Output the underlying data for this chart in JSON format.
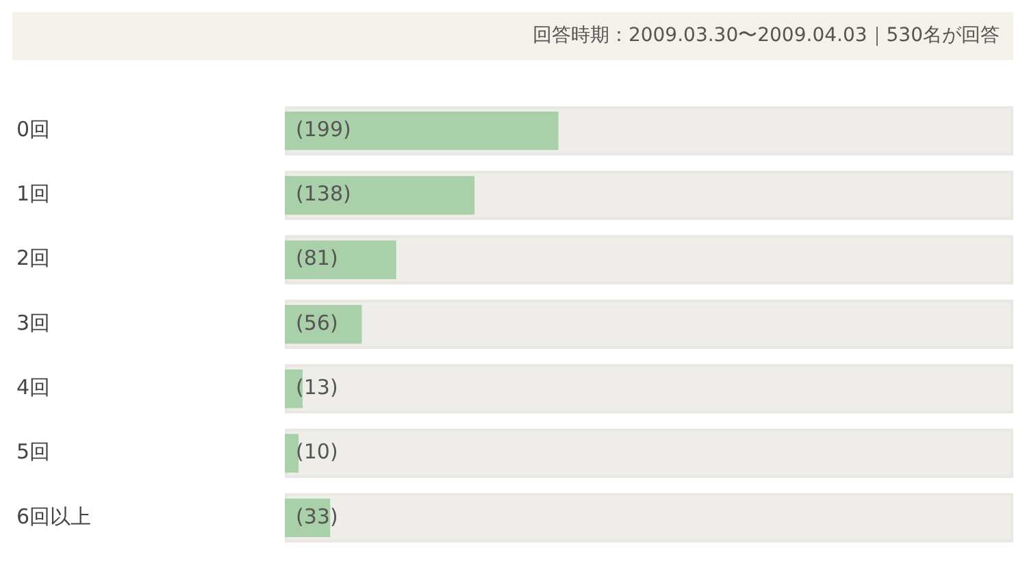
{
  "chart_data": {
    "type": "bar",
    "orientation": "horizontal",
    "title": "回答時期：2009.03.30〜2009.04.03｜530名が回答",
    "categories": [
      "0回",
      "1回",
      "2回",
      "3回",
      "4回",
      "5回",
      "6回以上"
    ],
    "values": [
      199,
      138,
      81,
      56,
      13,
      10,
      33
    ],
    "value_labels": [
      "(199)",
      "(138)",
      "(81)",
      "(56)",
      "(13)",
      "(10)",
      "(33)"
    ],
    "color": "#a9d0a9",
    "xlim": [
      0,
      530
    ],
    "tick_labels": "y",
    "legend": false
  }
}
